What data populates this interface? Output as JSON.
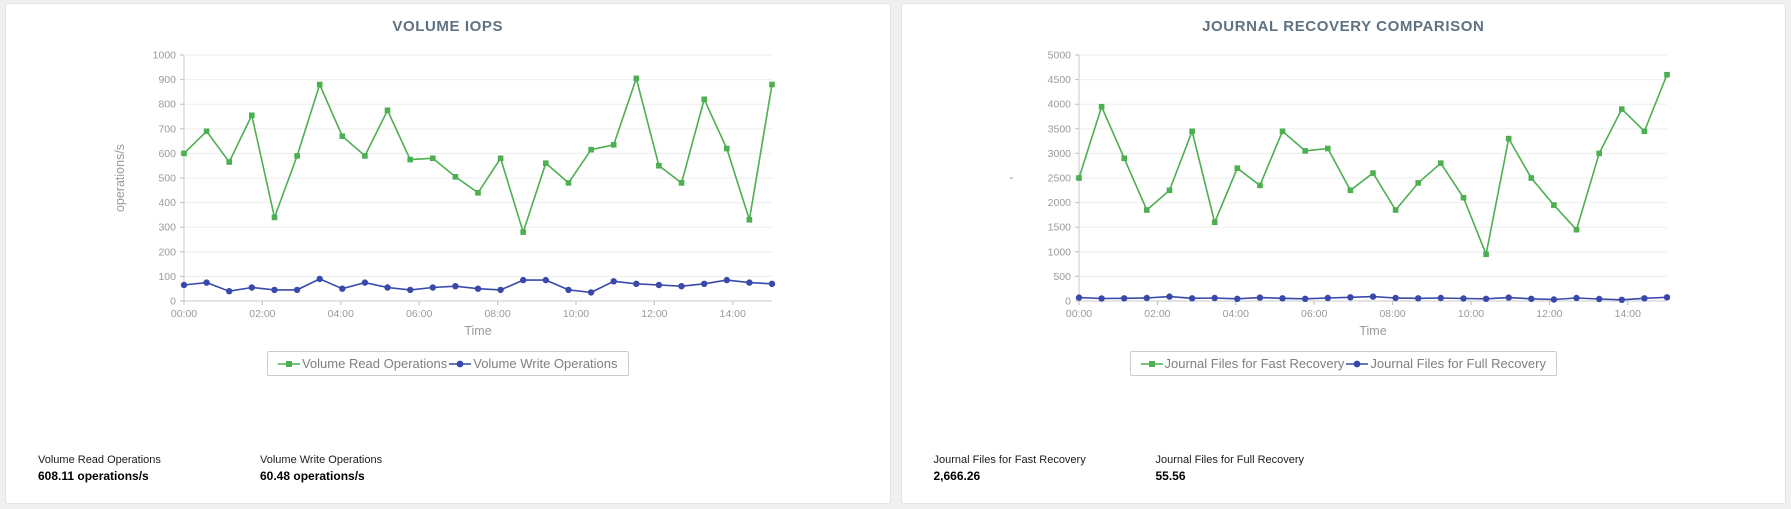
{
  "page": {
    "background": "#f0f0f1"
  },
  "chart_data": [
    {
      "type": "line",
      "title": "VOLUME IOPS",
      "xlabel": "Time",
      "ylabel": "operations/s",
      "ylim": [
        0,
        1000
      ],
      "ytick_step": 100,
      "x_hours_max": 15,
      "xtick_hours": [
        0,
        2,
        4,
        6,
        8,
        10,
        12,
        14
      ],
      "xtick_labels": [
        "00:00",
        "02:00",
        "04:00",
        "06:00",
        "08:00",
        "10:00",
        "12:00",
        "14:00"
      ],
      "grid": "horizontal",
      "legend_position": "bottom",
      "series": [
        {
          "name": "Volume Read Operations",
          "color": "#4caf50",
          "marker": "square",
          "values": [
            600,
            690,
            565,
            755,
            340,
            590,
            880,
            670,
            590,
            775,
            575,
            580,
            505,
            440,
            580,
            280,
            560,
            480,
            615,
            635,
            905,
            550,
            480,
            820,
            620,
            330,
            880
          ]
        },
        {
          "name": "Volume Write Operations",
          "color": "#3949ab",
          "marker": "circle",
          "values": [
            65,
            75,
            40,
            55,
            45,
            45,
            90,
            50,
            75,
            55,
            45,
            55,
            60,
            50,
            45,
            85,
            85,
            45,
            35,
            80,
            70,
            65,
            60,
            70,
            85,
            75,
            70
          ]
        }
      ],
      "stats": [
        {
          "label": "Volume Read Operations",
          "value": "608.11 operations/s"
        },
        {
          "label": "Volume Write Operations",
          "value": "60.48 operations/s"
        }
      ]
    },
    {
      "type": "line",
      "title": "JOURNAL RECOVERY COMPARISON",
      "xlabel": "Time",
      "ylabel": "'",
      "ylim": [
        0,
        5000
      ],
      "ytick_step": 500,
      "x_hours_max": 15,
      "xtick_hours": [
        0,
        2,
        4,
        6,
        8,
        10,
        12,
        14
      ],
      "xtick_labels": [
        "00:00",
        "02:00",
        "04:00",
        "06:00",
        "08:00",
        "10:00",
        "12:00",
        "14:00"
      ],
      "grid": "horizontal",
      "legend_position": "bottom",
      "series": [
        {
          "name": "Journal Files for Fast Recovery",
          "color": "#4caf50",
          "marker": "square",
          "values": [
            2500,
            3950,
            2900,
            1850,
            2250,
            3450,
            1600,
            2700,
            2350,
            3450,
            3050,
            3100,
            2250,
            2600,
            1850,
            2400,
            2800,
            2100,
            950,
            3300,
            2500,
            1950,
            1450,
            3000,
            3900,
            3450,
            4600
          ]
        },
        {
          "name": "Journal Files for Full Recovery",
          "color": "#3949ab",
          "marker": "circle",
          "values": [
            70,
            50,
            55,
            60,
            90,
            55,
            60,
            45,
            70,
            55,
            45,
            60,
            75,
            90,
            60,
            55,
            60,
            50,
            45,
            70,
            45,
            30,
            60,
            40,
            25,
            55,
            75
          ]
        }
      ],
      "stats": [
        {
          "label": "Journal Files for Fast Recovery",
          "value": "2,666.26"
        },
        {
          "label": "Journal Files for Full Recovery",
          "value": "55.56"
        }
      ]
    }
  ]
}
